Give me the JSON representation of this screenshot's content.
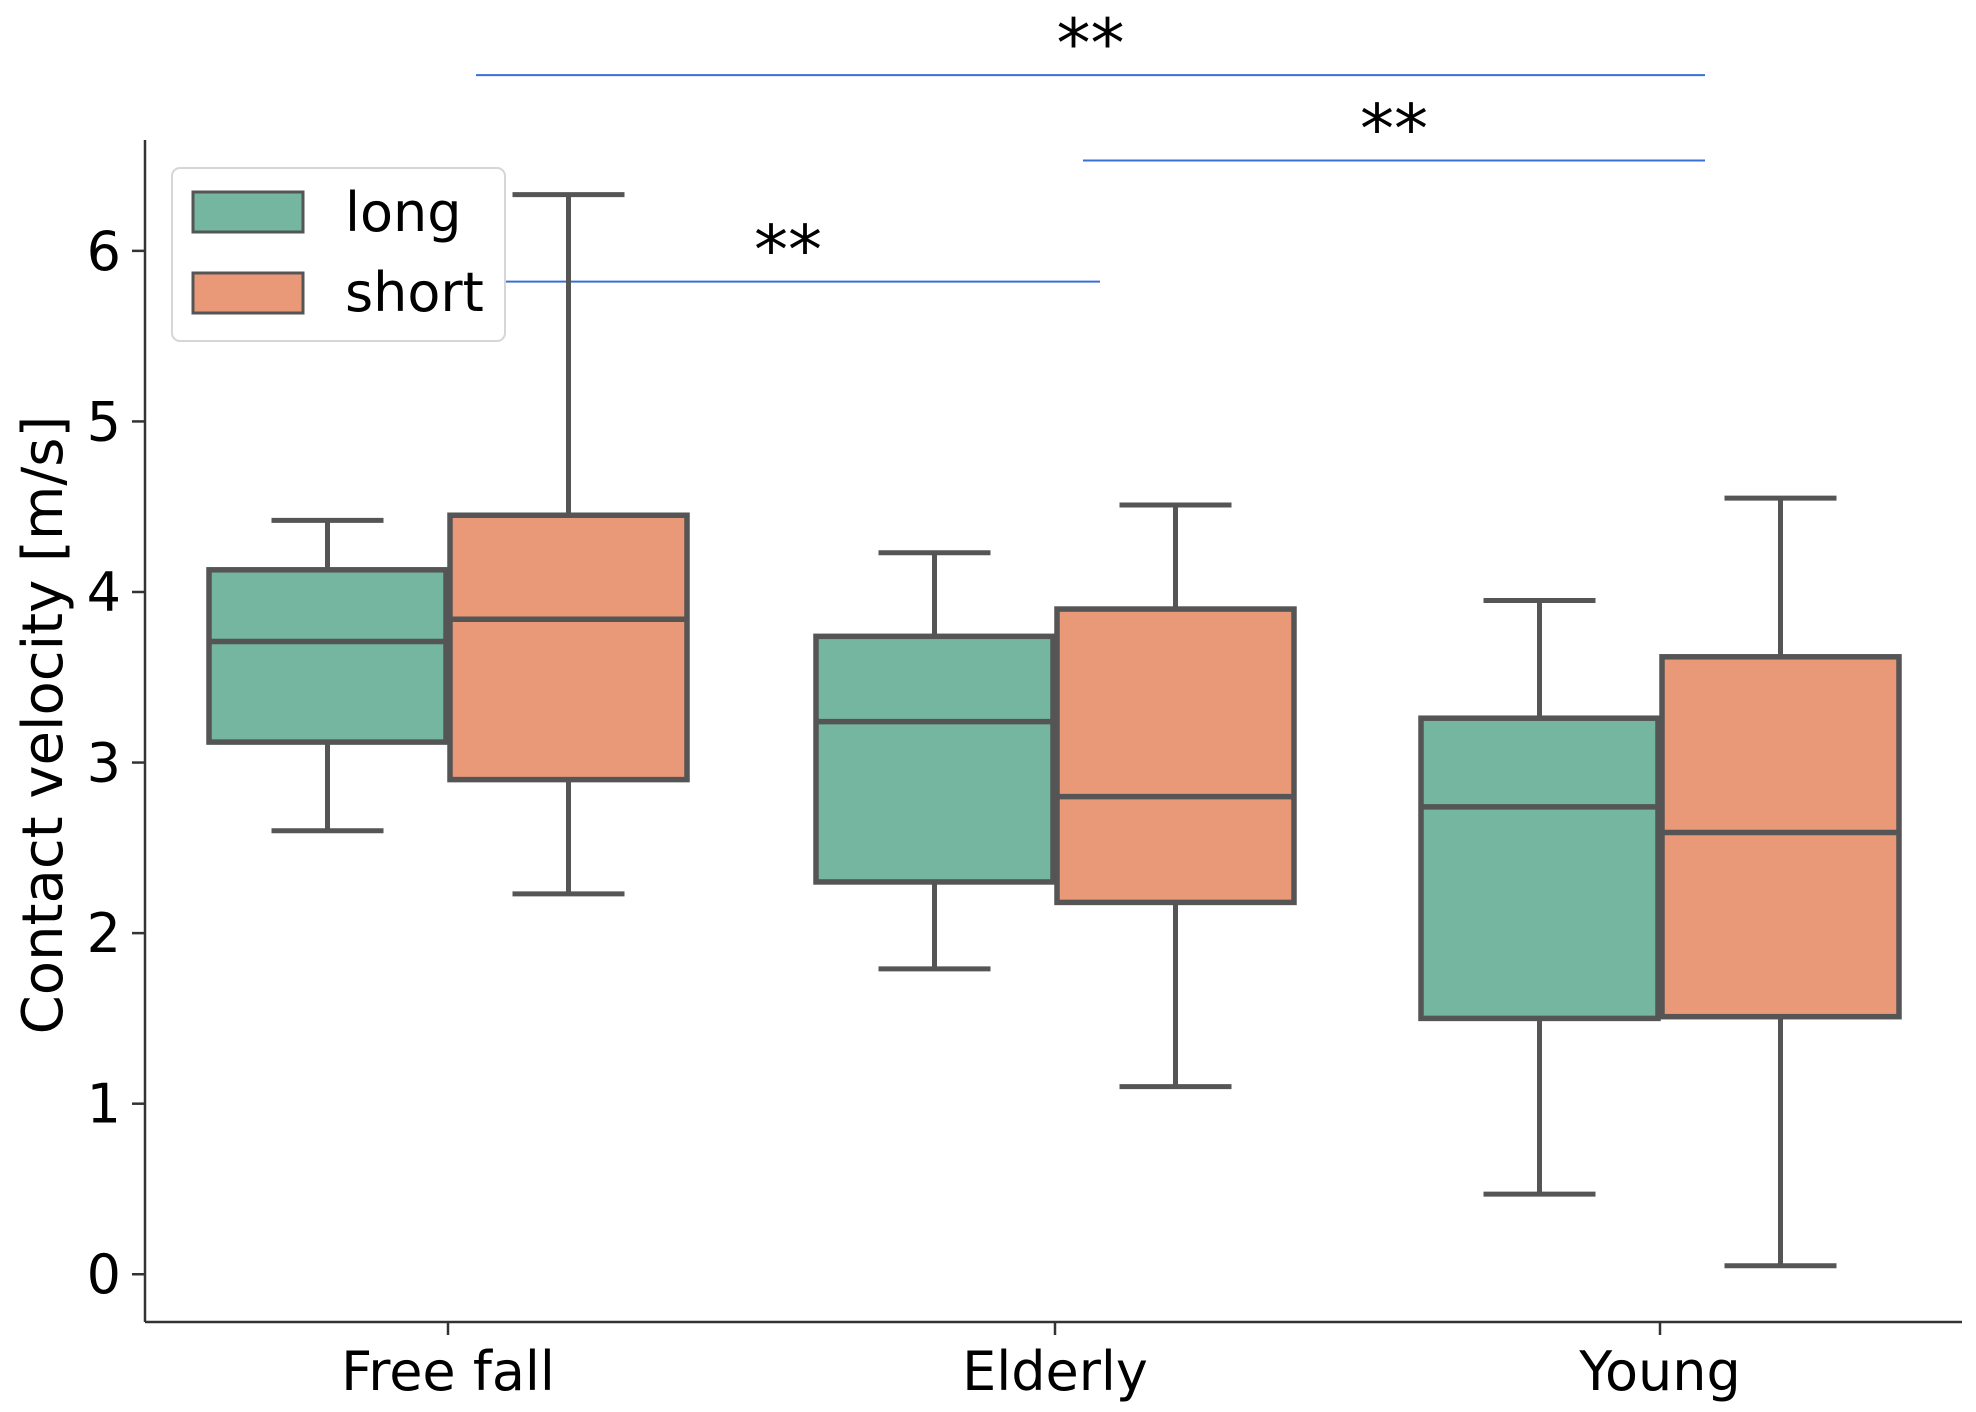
{
  "chart_data": {
    "type": "box",
    "categories": [
      "Free fall",
      "Elderly",
      "Young"
    ],
    "ylabel": "Contact velocity [m/s]",
    "xlabel": "",
    "ylim": [
      -0.28,
      6.65
    ],
    "yticks": [
      0,
      1,
      2,
      3,
      4,
      5,
      6
    ],
    "grid": false,
    "legend_position": "top-left",
    "series": [
      {
        "name": "long",
        "color": "#74b6a0",
        "boxes": [
          {
            "category": "Free fall",
            "whisker_low": 2.6,
            "q1": 3.12,
            "median": 3.71,
            "q3": 4.13,
            "whisker_high": 4.42
          },
          {
            "category": "Elderly",
            "whisker_low": 1.79,
            "q1": 2.3,
            "median": 3.24,
            "q3": 3.74,
            "whisker_high": 4.23
          },
          {
            "category": "Young",
            "whisker_low": 0.47,
            "q1": 1.5,
            "median": 2.74,
            "q3": 3.26,
            "whisker_high": 3.95
          }
        ]
      },
      {
        "name": "short",
        "color": "#e99977",
        "boxes": [
          {
            "category": "Free fall",
            "whisker_low": 2.23,
            "q1": 2.9,
            "median": 3.84,
            "q3": 4.45,
            "whisker_high": 6.33
          },
          {
            "category": "Elderly",
            "whisker_low": 1.1,
            "q1": 2.18,
            "median": 2.8,
            "q3": 3.9,
            "whisker_high": 4.51
          },
          {
            "category": "Young",
            "whisker_low": 0.05,
            "q1": 1.51,
            "median": 2.59,
            "q3": 3.62,
            "whisker_high": 4.55
          }
        ]
      }
    ],
    "significance": [
      {
        "from": "Free fall",
        "to": "Young",
        "label": "**",
        "y": 7.03
      },
      {
        "from": "Elderly",
        "to": "Young",
        "label": "**",
        "y": 6.53
      },
      {
        "from": "Free fall",
        "to": "Elderly",
        "label": "**",
        "y": 5.82
      }
    ],
    "colors": {
      "box_edge": "#555555",
      "significance_line": "#3a6fd8",
      "axis": "#333333"
    }
  }
}
